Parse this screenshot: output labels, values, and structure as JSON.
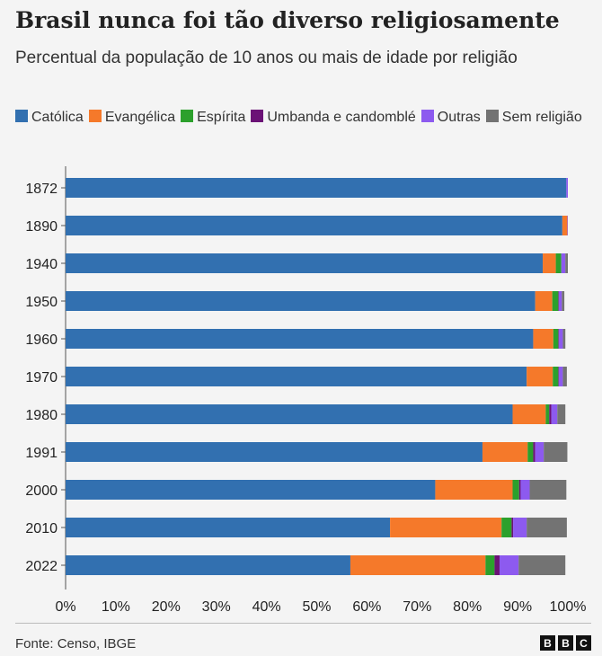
{
  "title": "Brasil nunca foi tão diverso religiosamente",
  "subtitle": "Percentual da população de 10 anos ou mais de idade por religião",
  "source": "Fonte: Censo, IBGE",
  "logo": [
    "B",
    "B",
    "C"
  ],
  "chart_data": {
    "type": "bar",
    "orientation": "horizontal",
    "stacked": true,
    "title": "Brasil nunca foi tão diverso religiosamente",
    "subtitle": "Percentual da população de 10 anos ou mais de idade por religião",
    "categories": [
      "1872",
      "1890",
      "1940",
      "1950",
      "1960",
      "1970",
      "1980",
      "1991",
      "2000",
      "2010",
      "2022"
    ],
    "xlim": [
      0,
      100
    ],
    "xticks": [
      "0%",
      "10%",
      "20%",
      "30%",
      "40%",
      "50%",
      "60%",
      "70%",
      "80%",
      "90%",
      "100%"
    ],
    "legend_position": "top",
    "series": [
      {
        "name": "Católica",
        "color": "#3270b0",
        "values": [
          99.7,
          98.9,
          95.0,
          93.5,
          93.1,
          91.8,
          89.0,
          83.0,
          73.6,
          64.6,
          56.7
        ]
      },
      {
        "name": "Evangélica",
        "color": "#f5792a",
        "values": [
          0.0,
          1.0,
          2.6,
          3.4,
          4.0,
          5.2,
          6.6,
          9.0,
          15.4,
          22.2,
          26.9
        ]
      },
      {
        "name": "Espírita",
        "color": "#2ca02c",
        "values": [
          0.0,
          0.0,
          1.1,
          1.2,
          1.0,
          1.1,
          0.7,
          1.1,
          1.3,
          2.0,
          1.8
        ]
      },
      {
        "name": "Umbanda e candomblé",
        "color": "#6b1276",
        "values": [
          0.0,
          0.0,
          0.0,
          0.1,
          0.1,
          0.1,
          0.4,
          0.4,
          0.3,
          0.3,
          1.0
        ]
      },
      {
        "name": "Outras",
        "color": "#8d5aef",
        "values": [
          0.3,
          0.1,
          0.8,
          0.6,
          0.8,
          0.8,
          1.2,
          1.7,
          1.8,
          2.7,
          3.8
        ]
      },
      {
        "name": "Sem religião",
        "color": "#737373",
        "values": [
          0.0,
          0.0,
          0.5,
          0.5,
          0.5,
          0.8,
          1.6,
          4.7,
          7.3,
          8.0,
          9.3
        ]
      }
    ]
  }
}
